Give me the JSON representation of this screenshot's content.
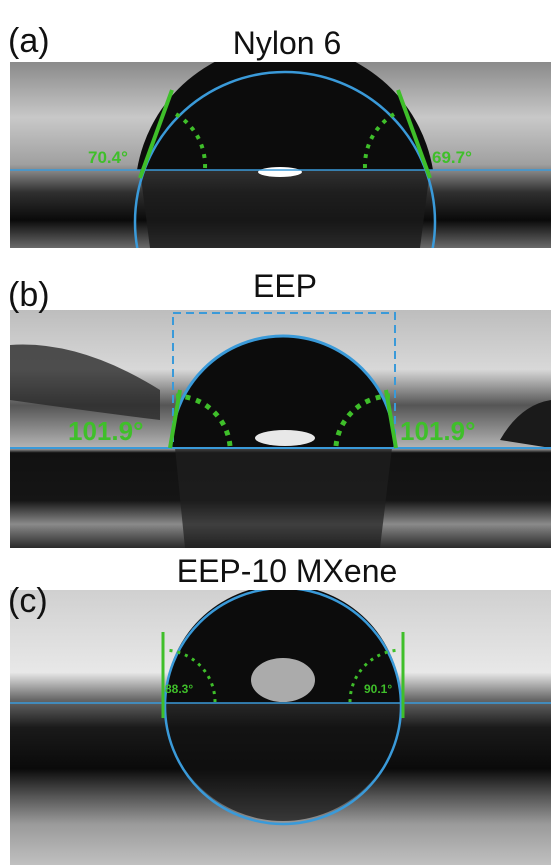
{
  "panels": [
    {
      "label": "(a)",
      "title": "Nylon 6",
      "left_angle": "70.4°",
      "right_angle": "69.7°"
    },
    {
      "label": "(b)",
      "title": "EEP",
      "left_angle": "101.9°",
      "right_angle": "101.9°"
    },
    {
      "label": "(c)",
      "title": "EEP-10 MXene",
      "left_angle": "88.3°",
      "right_angle": "90.1°"
    }
  ]
}
